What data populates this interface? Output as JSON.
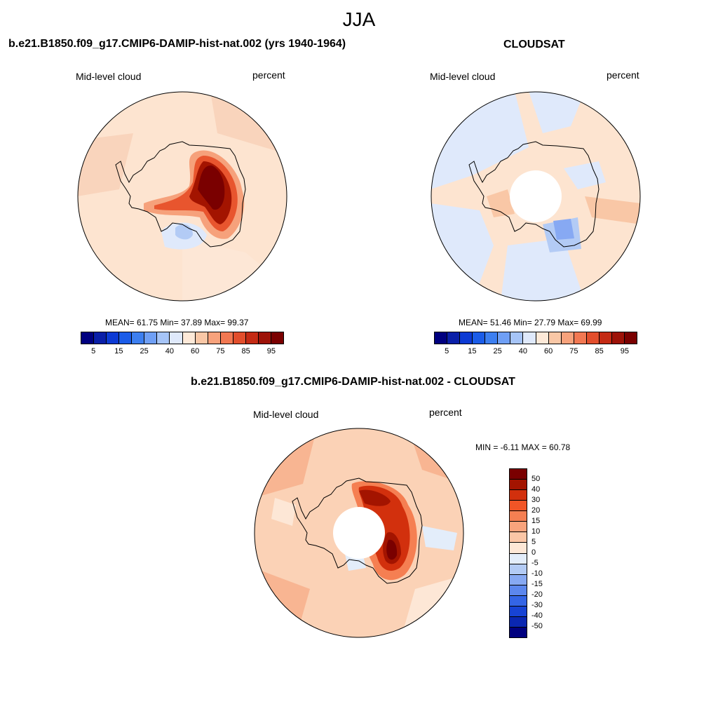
{
  "title": "JJA",
  "panels": [
    {
      "title": "b.e21.B1850.f09_g17.CMIP6-DAMIP-hist-nat.002 (yrs 1940-1964)",
      "left_label": "Mid-level cloud",
      "right_label": "percent",
      "stats": "MEAN=  61.75  Min=  37.89  Max=  99.37"
    },
    {
      "title": "CLOUDSAT",
      "left_label": "Mid-level cloud",
      "right_label": "percent",
      "stats": "MEAN=  51.46  Min=  27.79  Max=  69.99"
    },
    {
      "title": "b.e21.B1850.f09_g17.CMIP6-DAMIP-hist-nat.002 - CLOUDSAT",
      "left_label": "Mid-level cloud",
      "right_label": "percent",
      "stats": "MIN =  -6.11 MAX =  60.78"
    }
  ],
  "colorbar_abs": {
    "colors": [
      "#00007f",
      "#0a1fa8",
      "#0c3ad4",
      "#1b5ce8",
      "#3d7ff0",
      "#6f9ff5",
      "#a6c4f7",
      "#dfe9fb",
      "#fde9d8",
      "#f9c7a6",
      "#f7a27c",
      "#f27852",
      "#e24e2c",
      "#c42a14",
      "#9d1208",
      "#7a0000"
    ],
    "labels": [
      "5",
      "15",
      "25",
      "40",
      "60",
      "75",
      "85",
      "95"
    ]
  },
  "colorbar_diff": {
    "colors": [
      "#7a0000",
      "#a31400",
      "#d2300d",
      "#f15526",
      "#f57f52",
      "#f8a37c",
      "#fbc6a6",
      "#fde7d6",
      "#e3edfa",
      "#b3cbf5",
      "#87a9f3",
      "#5c87ee",
      "#3465e6",
      "#1743d4",
      "#0a27b2",
      "#00007f"
    ],
    "labels": [
      "50",
      "40",
      "30",
      "20",
      "15",
      "10",
      "5",
      "0",
      "-5",
      "-10",
      "-15",
      "-20",
      "-30",
      "-40",
      "-50"
    ]
  }
}
